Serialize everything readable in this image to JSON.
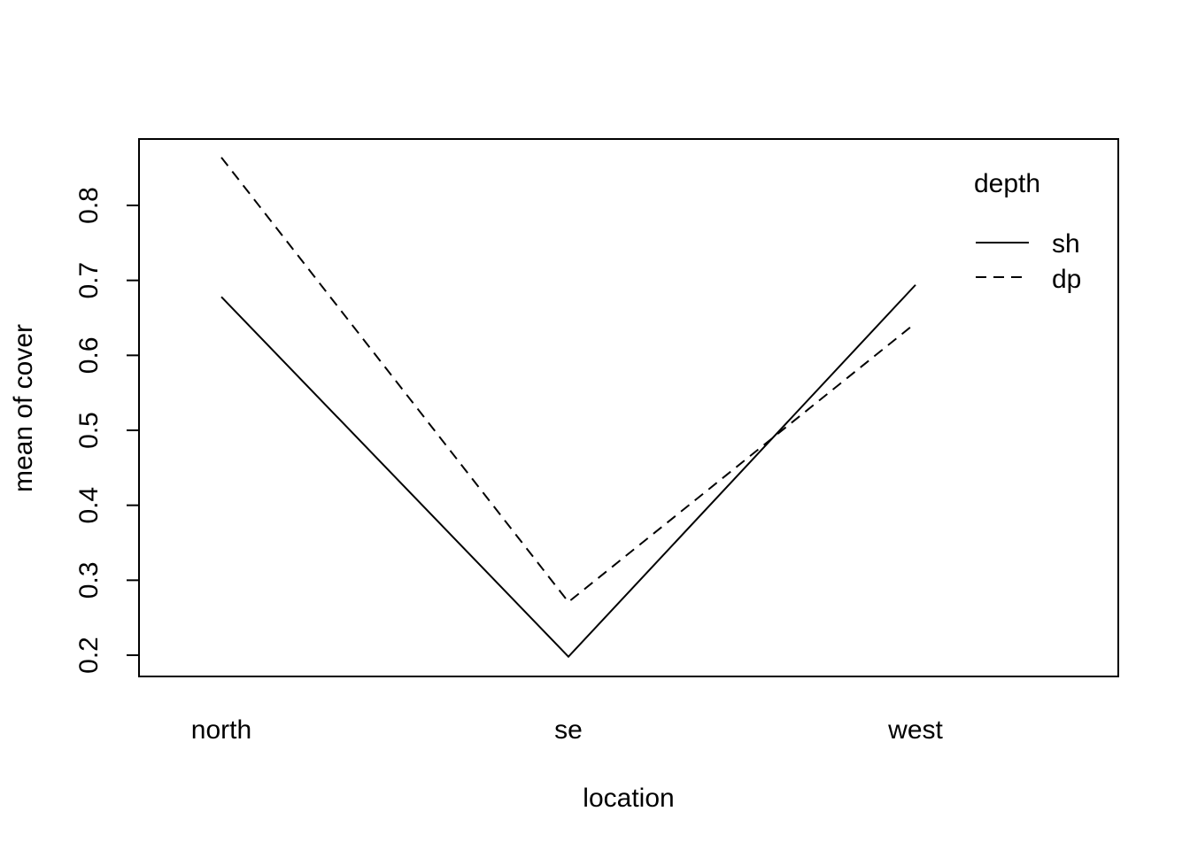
{
  "chart_data": {
    "type": "line",
    "title": "",
    "xlabel": "location",
    "ylabel": "mean of  cover",
    "categories": [
      "north",
      "se",
      "west"
    ],
    "ylim": [
      0.175,
      0.89
    ],
    "yticks": [
      "0.2",
      "0.3",
      "0.4",
      "0.5",
      "0.6",
      "0.7",
      "0.8"
    ],
    "grid": false,
    "legend": {
      "title": "depth",
      "position": "top-right",
      "entries": [
        {
          "label": "sh",
          "line_style": "solid"
        },
        {
          "label": "dp",
          "line_style": "dashed"
        }
      ]
    },
    "series": [
      {
        "name": "sh",
        "line_style": "solid",
        "values": [
          0.678,
          0.198,
          0.694
        ]
      },
      {
        "name": "dp",
        "line_style": "dashed",
        "values": [
          0.864,
          0.271,
          0.643
        ]
      }
    ]
  }
}
